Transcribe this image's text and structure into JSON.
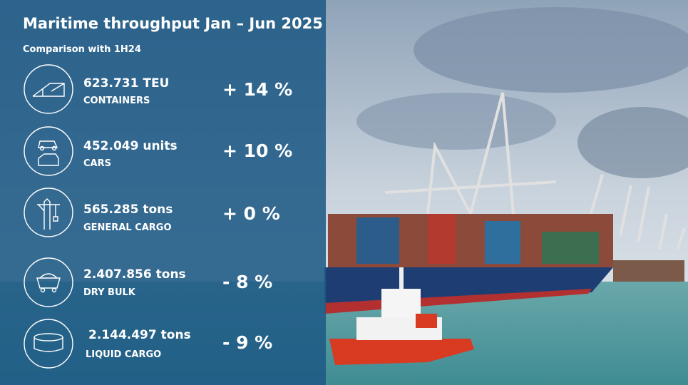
{
  "header": {
    "title": "Maritime throughput Jan – Jun 2025",
    "subtitle": "Comparison with 1H24"
  },
  "rows": [
    {
      "value": "623.731 TEU",
      "label": "CONTAINERS",
      "change": "+ 14 %"
    },
    {
      "value": "452.049 units",
      "label": "CARS",
      "change": "+ 10 %"
    },
    {
      "value": "565.285 tons",
      "label": "GENERAL CARGO",
      "change": "+ 0 %"
    },
    {
      "value": "2.407.856 tons",
      "label": "DRY BULK",
      "change": "- 8 %"
    },
    {
      "value": "2.144.497 tons",
      "label": "LIQUID CARGO",
      "change": "- 9 %"
    }
  ]
}
